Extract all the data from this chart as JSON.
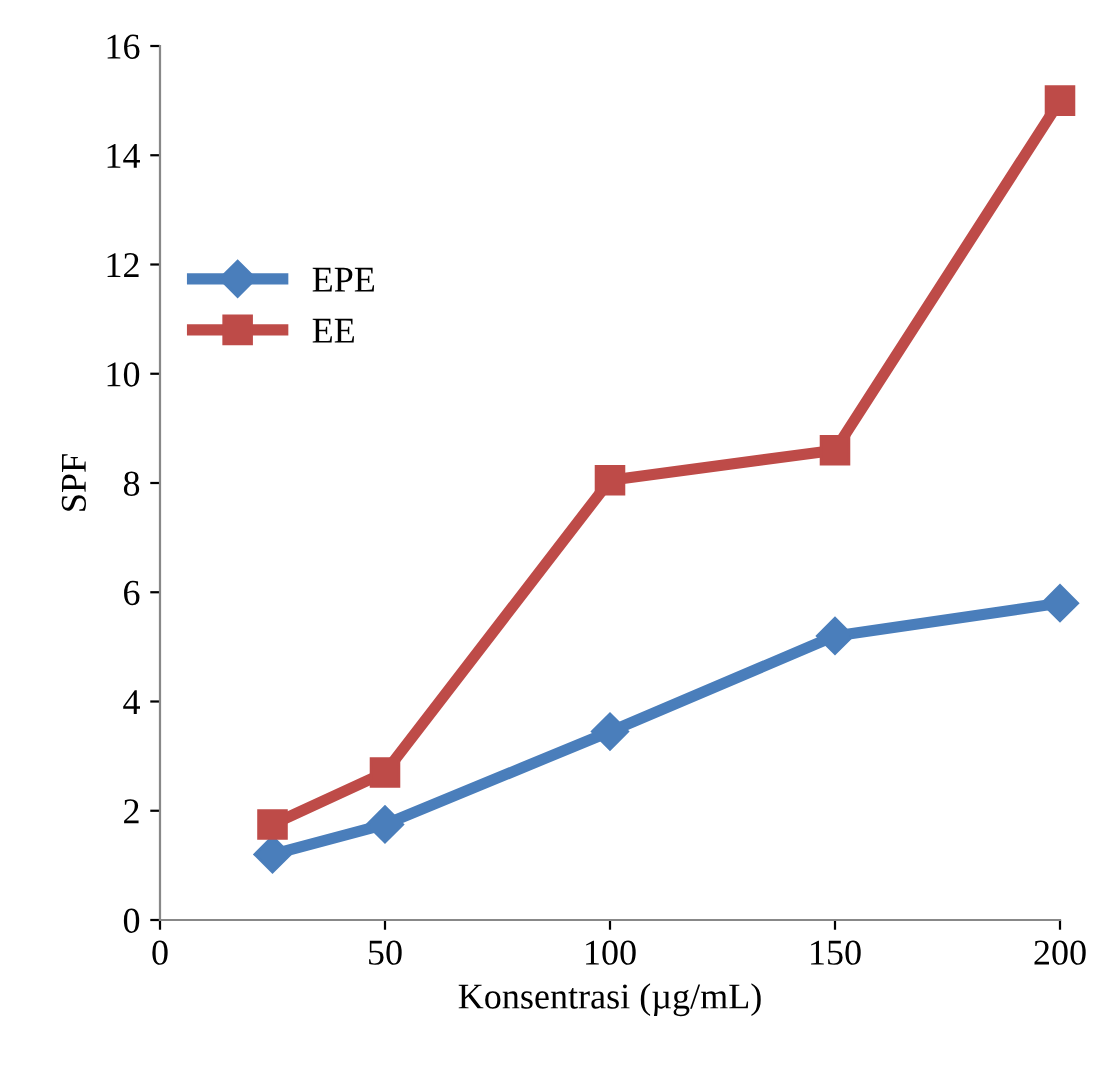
{
  "chart_data": {
    "type": "line",
    "xlabel": "Konsentrasi (µg/mL)",
    "ylabel": "SPF",
    "x": [
      25,
      50,
      100,
      150,
      200
    ],
    "series": [
      {
        "name": "EPE",
        "color": "#4a7ebb",
        "marker": "diamond",
        "values": [
          1.2,
          1.75,
          3.45,
          5.2,
          5.8
        ]
      },
      {
        "name": "EE",
        "color": "#be4b48",
        "marker": "square",
        "values": [
          1.75,
          2.7,
          8.05,
          8.6,
          15.0
        ]
      }
    ],
    "xlim": [
      0,
      200
    ],
    "xticks": [
      0,
      50,
      100,
      150,
      200
    ],
    "ylim": [
      0,
      16
    ],
    "yticks": [
      0,
      2,
      4,
      6,
      8,
      10,
      12,
      14,
      16
    ],
    "grid": false,
    "legend": "left",
    "line_style": "solid"
  }
}
